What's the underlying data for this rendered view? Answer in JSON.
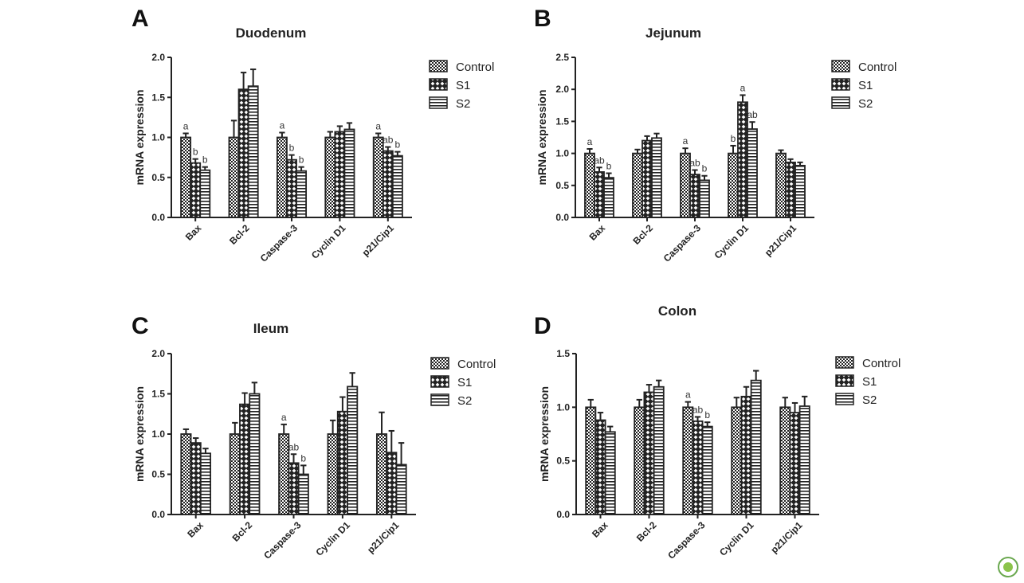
{
  "colors": {
    "bar_fill": "#ffffff",
    "bar_stroke": "#222222",
    "axis": "#222222",
    "badge": "#6aa84f"
  },
  "legend": [
    "Control",
    "S1",
    "S2"
  ],
  "badge_icon": "leaf-icon",
  "chart_data": [
    {
      "type": "bar",
      "panel": "A",
      "title": "Duodenum",
      "ylabel": "mRNA expression",
      "xlabel": "",
      "ylim": [
        0,
        2.0
      ],
      "yticks": [
        "0.0",
        "0.5",
        "1.0",
        "1.5",
        "2.0"
      ],
      "categories": [
        "Bax",
        "Bcl-2",
        "Caspase-3",
        "Cyclin D1",
        "p21/Cip1"
      ],
      "legend_position": "top-right",
      "series": [
        {
          "name": "Control",
          "pattern": "checker",
          "values": [
            1.0,
            1.0,
            1.0,
            1.0,
            1.0
          ],
          "errors": [
            0.05,
            0.21,
            0.06,
            0.07,
            0.05
          ],
          "sig": [
            "a",
            "",
            "a",
            "",
            "a"
          ]
        },
        {
          "name": "S1",
          "pattern": "diamond",
          "values": [
            0.68,
            1.6,
            0.72,
            1.07,
            0.83
          ],
          "errors": [
            0.05,
            0.21,
            0.06,
            0.07,
            0.05
          ],
          "sig": [
            "b",
            "",
            "b",
            "",
            "ab"
          ]
        },
        {
          "name": "S2",
          "pattern": "stripes",
          "values": [
            0.59,
            1.64,
            0.58,
            1.1,
            0.77
          ],
          "errors": [
            0.04,
            0.21,
            0.05,
            0.08,
            0.05
          ],
          "sig": [
            "b",
            "",
            "b",
            "",
            "b"
          ]
        }
      ]
    },
    {
      "type": "bar",
      "panel": "B",
      "title": "Jejunum",
      "ylabel": "mRNA expression",
      "xlabel": "",
      "ylim": [
        0,
        2.5
      ],
      "yticks": [
        "0.0",
        "0.5",
        "1.0",
        "1.5",
        "2.0",
        "2.5"
      ],
      "categories": [
        "Bax",
        "Bcl-2",
        "Caspase-3",
        "Cyclin D1",
        "p21/Cip1"
      ],
      "legend_position": "top-right",
      "series": [
        {
          "name": "Control",
          "pattern": "checker",
          "values": [
            1.0,
            1.0,
            1.0,
            1.0,
            1.0
          ],
          "errors": [
            0.07,
            0.06,
            0.08,
            0.12,
            0.05
          ],
          "sig": [
            "a",
            "",
            "a",
            "b",
            ""
          ]
        },
        {
          "name": "S1",
          "pattern": "diamond",
          "values": [
            0.71,
            1.2,
            0.67,
            1.8,
            0.86
          ],
          "errors": [
            0.07,
            0.07,
            0.07,
            0.11,
            0.05
          ],
          "sig": [
            "ab",
            "",
            "ab",
            "a",
            ""
          ]
        },
        {
          "name": "S2",
          "pattern": "stripes",
          "values": [
            0.62,
            1.24,
            0.58,
            1.38,
            0.81
          ],
          "errors": [
            0.07,
            0.07,
            0.07,
            0.11,
            0.05
          ],
          "sig": [
            "b",
            "",
            "b",
            "ab",
            ""
          ]
        }
      ]
    },
    {
      "type": "bar",
      "panel": "C",
      "title": "Ileum",
      "ylabel": "mRNA expression",
      "xlabel": "",
      "ylim": [
        0,
        2.0
      ],
      "yticks": [
        "0.0",
        "0.5",
        "1.0",
        "1.5",
        "2.0"
      ],
      "categories": [
        "Bax",
        "Bcl-2",
        "Caspase-3",
        "Cyclin D1",
        "p21/Cip1"
      ],
      "legend_position": "top-right",
      "series": [
        {
          "name": "Control",
          "pattern": "checker",
          "values": [
            1.0,
            1.0,
            1.0,
            1.0,
            1.0
          ],
          "errors": [
            0.06,
            0.14,
            0.12,
            0.17,
            0.27
          ],
          "sig": [
            "",
            "",
            "a",
            "",
            ""
          ]
        },
        {
          "name": "S1",
          "pattern": "diamond",
          "values": [
            0.89,
            1.37,
            0.64,
            1.28,
            0.77
          ],
          "errors": [
            0.06,
            0.14,
            0.11,
            0.18,
            0.27
          ],
          "sig": [
            "",
            "",
            "ab",
            "",
            ""
          ]
        },
        {
          "name": "S2",
          "pattern": "stripes",
          "values": [
            0.76,
            1.5,
            0.5,
            1.59,
            0.62
          ],
          "errors": [
            0.06,
            0.14,
            0.11,
            0.17,
            0.27
          ],
          "sig": [
            "",
            "",
            "b",
            "",
            ""
          ]
        }
      ]
    },
    {
      "type": "bar",
      "panel": "D",
      "title": "Colon",
      "ylabel": "mRNA expression",
      "xlabel": "",
      "ylim": [
        0,
        1.5
      ],
      "yticks": [
        "0.0",
        "0.5",
        "1.0",
        "1.5"
      ],
      "categories": [
        "Bax",
        "Bcl-2",
        "Caspase-3",
        "Cyclin D1",
        "p21/Cip1"
      ],
      "legend_position": "top-right",
      "series": [
        {
          "name": "Control",
          "pattern": "checker",
          "values": [
            1.0,
            1.0,
            1.0,
            1.0,
            1.0
          ],
          "errors": [
            0.07,
            0.07,
            0.05,
            0.09,
            0.09
          ],
          "sig": [
            "",
            "",
            "a",
            "",
            ""
          ]
        },
        {
          "name": "S1",
          "pattern": "diamond",
          "values": [
            0.88,
            1.14,
            0.87,
            1.1,
            0.95
          ],
          "errors": [
            0.07,
            0.07,
            0.04,
            0.09,
            0.09
          ],
          "sig": [
            "",
            "",
            "ab",
            "",
            ""
          ]
        },
        {
          "name": "S2",
          "pattern": "stripes",
          "values": [
            0.77,
            1.19,
            0.82,
            1.25,
            1.01
          ],
          "errors": [
            0.05,
            0.06,
            0.04,
            0.09,
            0.09
          ],
          "sig": [
            "",
            "",
            "b",
            "",
            ""
          ]
        }
      ]
    }
  ]
}
